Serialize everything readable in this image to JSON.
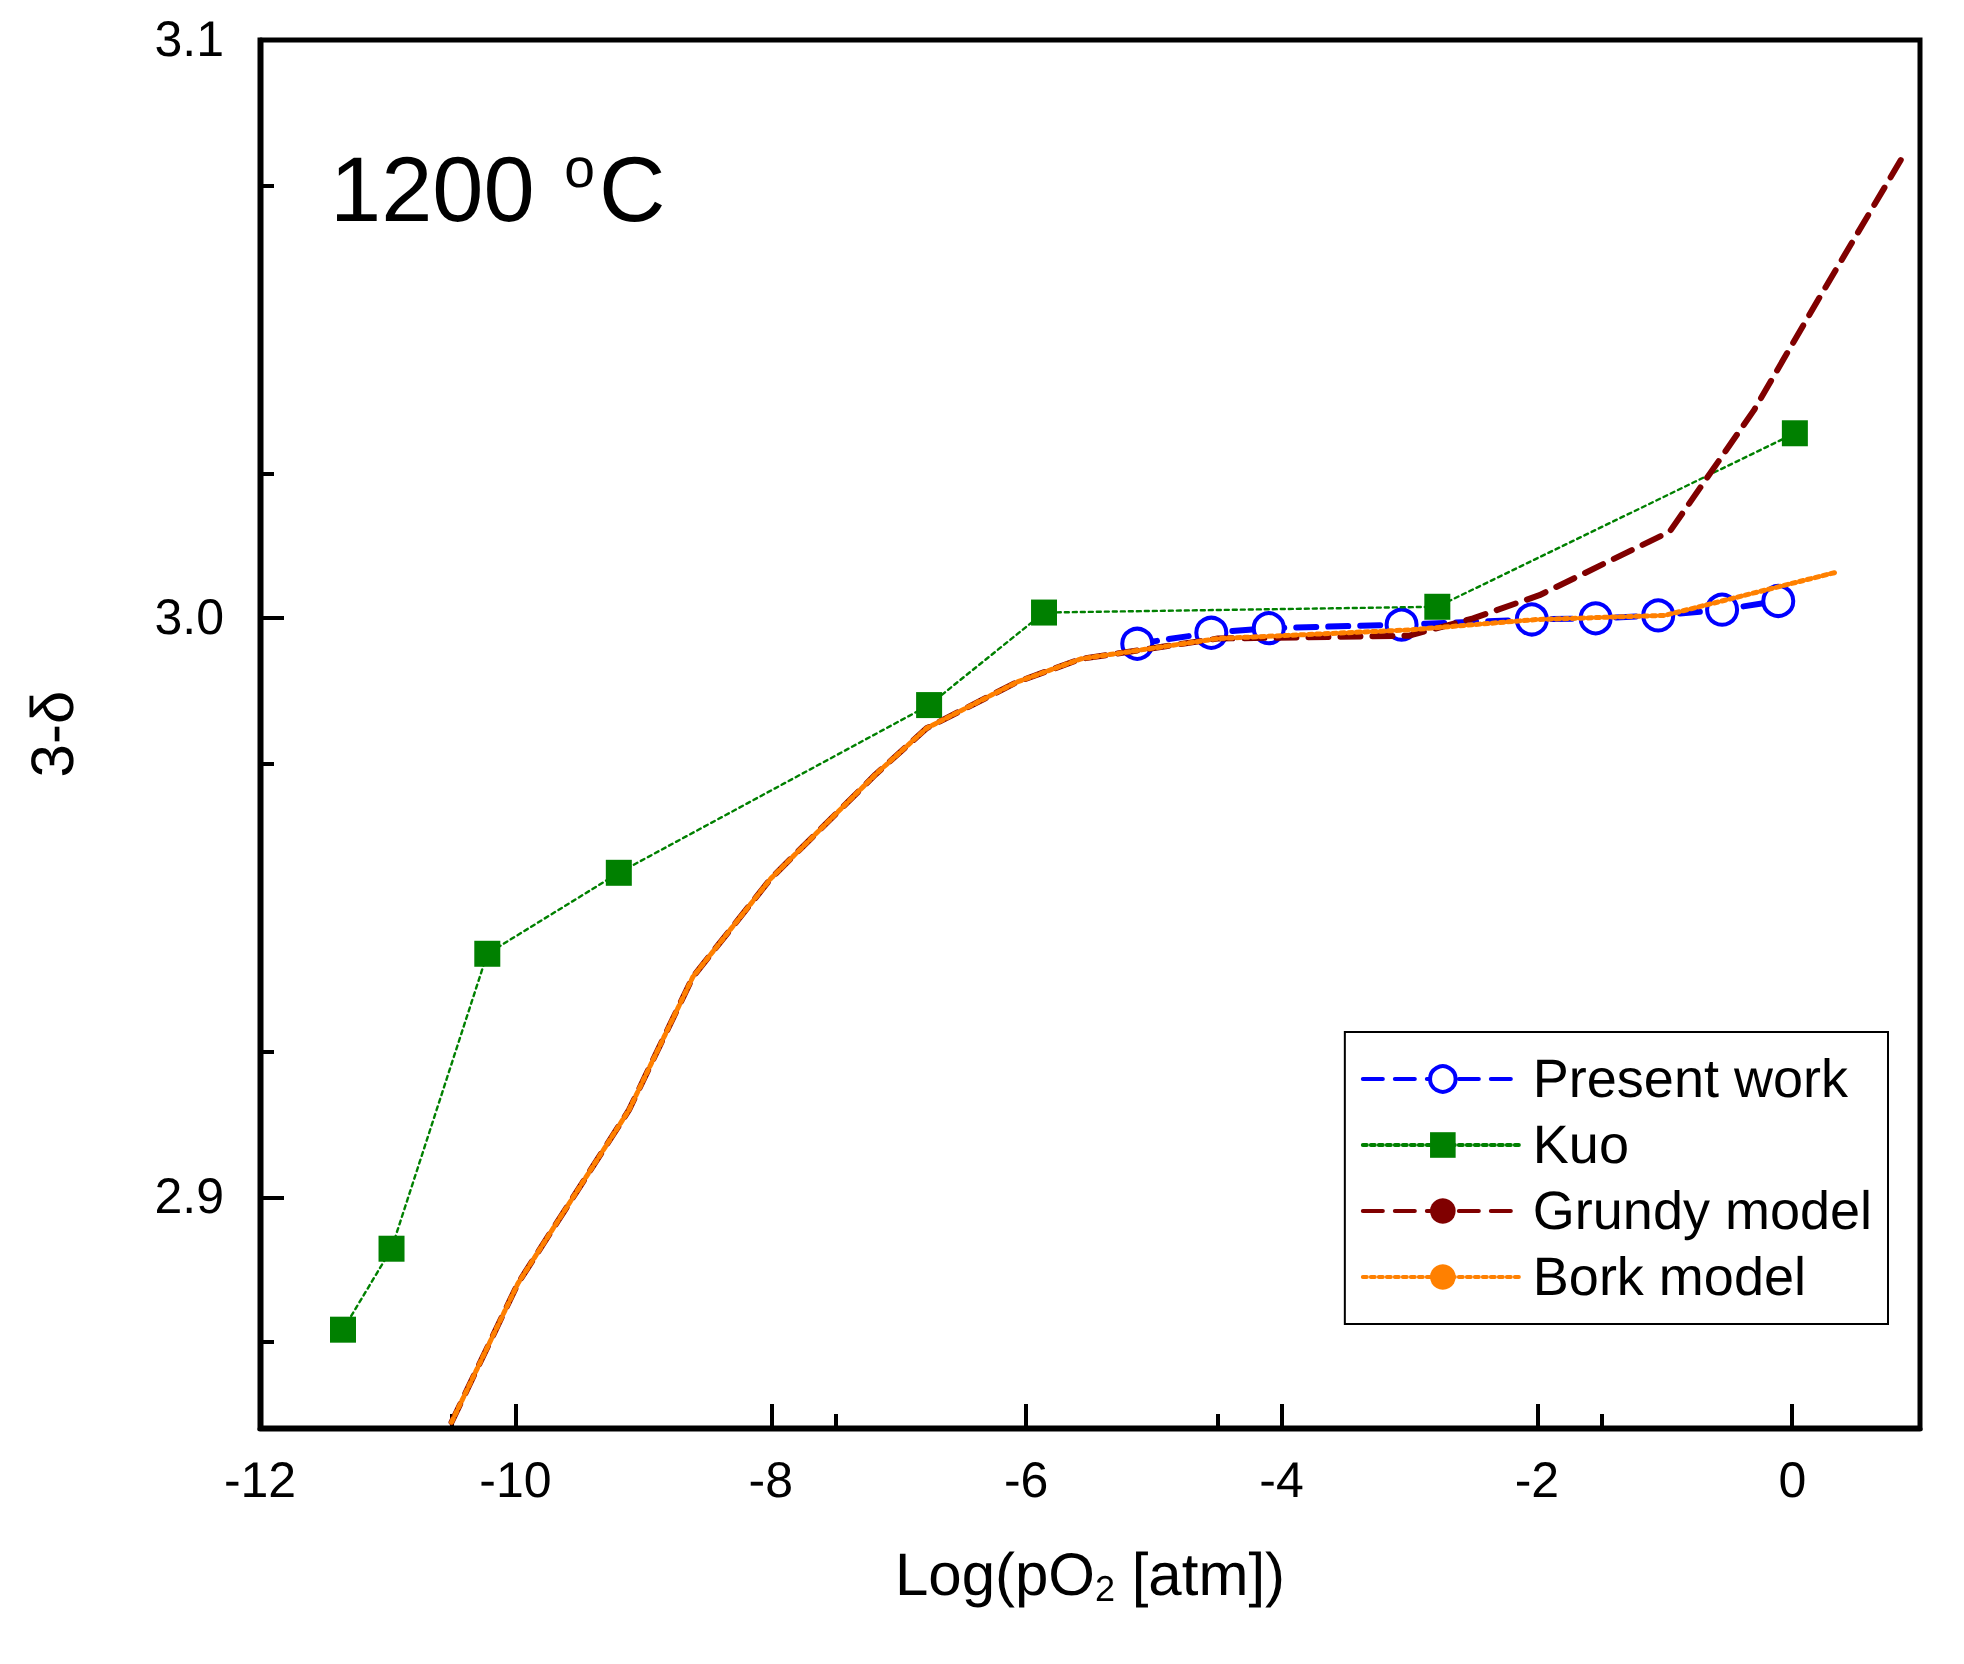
{
  "chart_data": {
    "type": "line",
    "xlabel": "Log(pO$_{2}$ [atm])",
    "ylabel": "3-δ",
    "annotations": [
      "1200 $^{o}$C"
    ],
    "xlim": [
      -12,
      1
    ],
    "xticks": [
      -12,
      -10,
      -8,
      -6,
      -4,
      -2,
      0
    ],
    "ylim": [
      2.86,
      3.1
    ],
    "yticks": [
      2.9,
      {
        "value": 3.0,
        "label": "3.0"
      },
      3.1
    ],
    "grid": false,
    "legend": "bottom right",
    "series": [
      {
        "name": "Present work",
        "color": "#0000ff",
        "marker": "circle",
        "line_style": "dashed",
        "x": [
          -5.13,
          -4.55,
          -4.1,
          -3.06,
          -2.04,
          -1.54,
          -1.05,
          -0.55,
          -0.11
        ],
        "values": [
          2.9956,
          2.9975,
          2.9983,
          2.9989,
          2.9998,
          3.0,
          3.0005,
          3.0015,
          3.003
        ]
      },
      {
        "name": "Kuo",
        "color": "#008000",
        "marker": "square",
        "line_style": "dotted",
        "x": [
          -11.35,
          -10.97,
          -10.22,
          -9.19,
          -6.76,
          -5.86,
          -2.78,
          0.02
        ],
        "values": [
          2.877,
          2.891,
          2.942,
          2.956,
          2.985,
          3.001,
          3.002,
          3.032
        ]
      },
      {
        "name": "Grundy model",
        "color": "#800000",
        "marker": "none",
        "line_style": "dashed",
        "x": [
          -10.5,
          -9.98,
          -9.11,
          -8.61,
          -8.0,
          -7.18,
          -6.78,
          -6.07,
          -5.57,
          -4.5,
          -3.0,
          -2.5,
          -1.98,
          -0.96,
          -0.3,
          0.2,
          0.87
        ],
        "values": [
          2.861,
          2.885,
          2.915,
          2.938,
          2.955,
          2.973,
          2.981,
          2.989,
          2.993,
          2.9965,
          2.997,
          3.0,
          3.004,
          3.015,
          3.036,
          3.055,
          3.08
        ]
      },
      {
        "name": "Bork model",
        "color": "#ff8000",
        "marker": "none",
        "line_style": "dotted",
        "x": [
          -10.5,
          -9.98,
          -9.11,
          -8.61,
          -8.0,
          -7.18,
          -6.78,
          -6.07,
          -5.57,
          -4.5,
          -3.0,
          -2.0,
          -1.0,
          0.35
        ],
        "values": [
          2.861,
          2.885,
          2.915,
          2.938,
          2.955,
          2.973,
          2.981,
          2.989,
          2.993,
          2.9965,
          2.998,
          2.9998,
          3.0005,
          3.008
        ]
      }
    ]
  }
}
